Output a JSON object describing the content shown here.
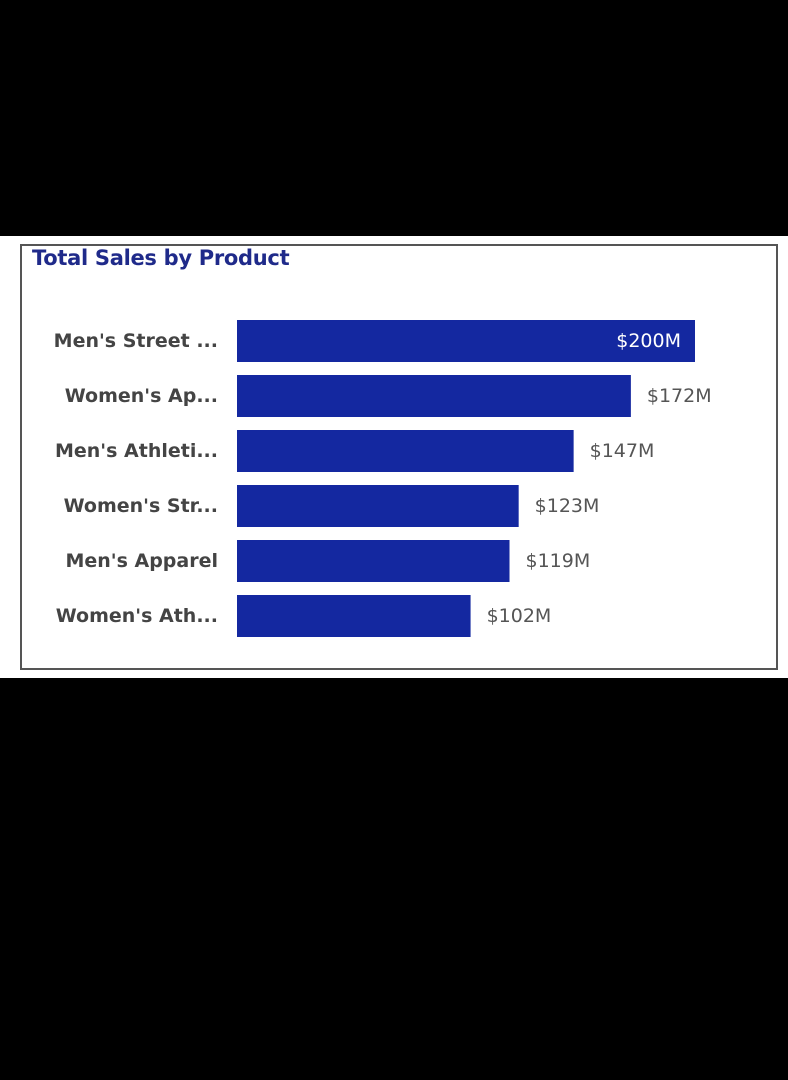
{
  "chart_data": {
    "type": "bar",
    "orientation": "horizontal",
    "title": "Total Sales by Product",
    "categories": [
      "Men's Street ...",
      "Women's Ap...",
      "Men's Athleti...",
      "Women's Str...",
      "Men's Apparel",
      "Women's Ath..."
    ],
    "values": [
      200,
      172,
      147,
      123,
      119,
      102
    ],
    "value_labels": [
      "$200M",
      "$172M",
      "$147M",
      "$123M",
      "$119M",
      "$102M"
    ],
    "unit": "$M",
    "xlim": [
      0,
      200
    ],
    "grid": false,
    "legend": "none",
    "bar_color": "#1428a0"
  }
}
